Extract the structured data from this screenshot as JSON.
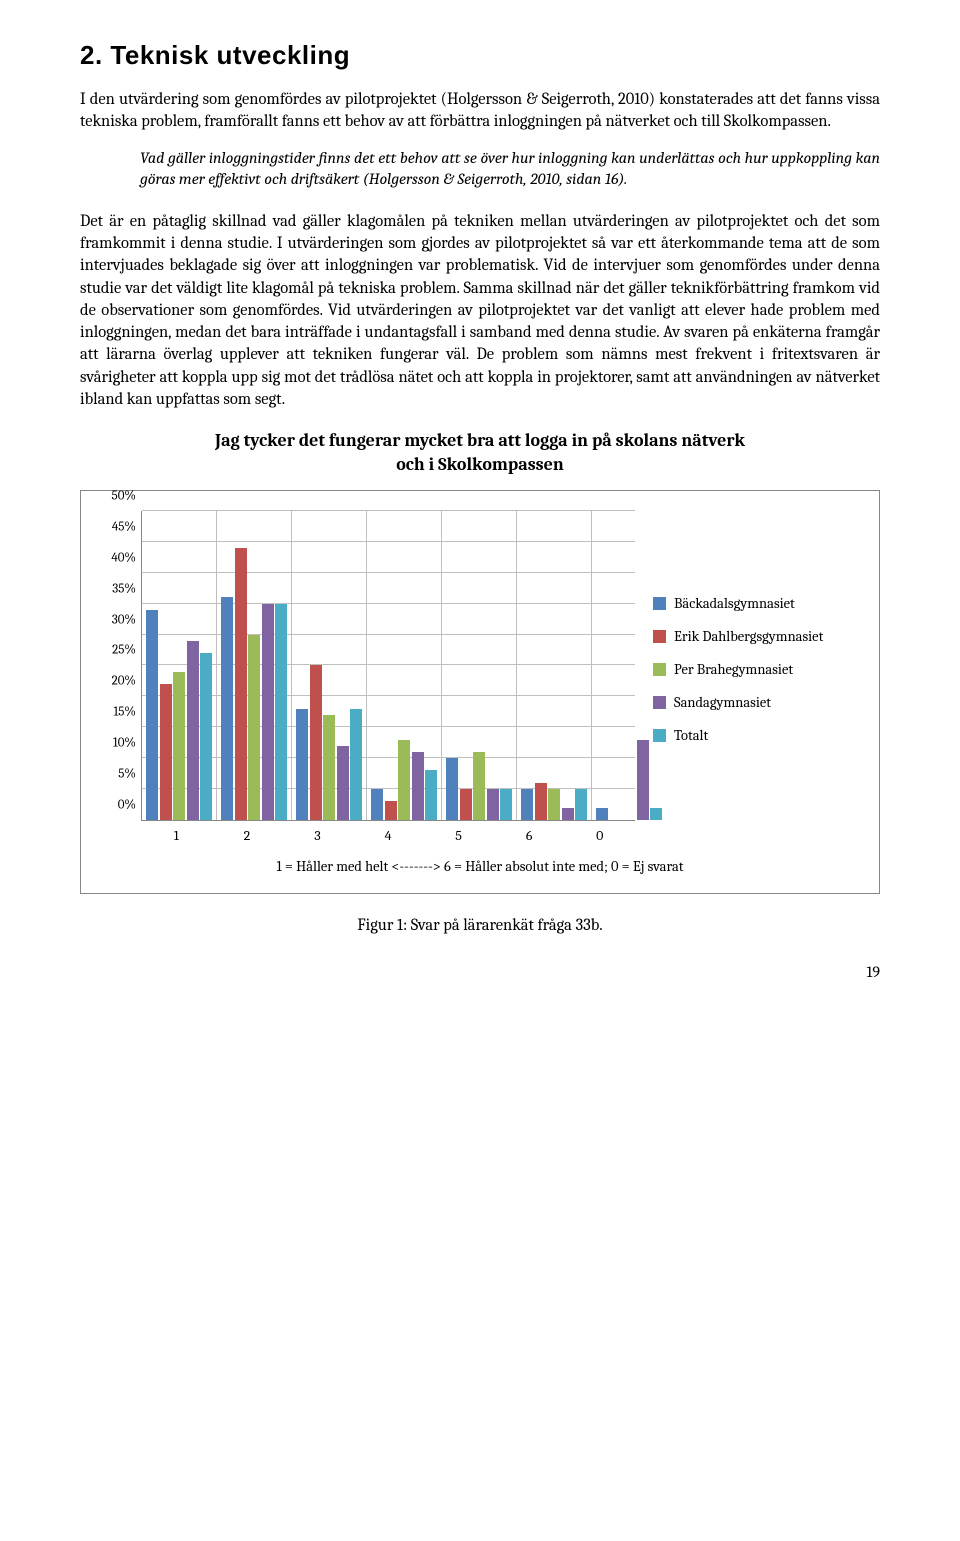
{
  "heading": "2. Teknisk utveckling",
  "para1": "I den utvärdering som genomfördes av pilotprojektet (Holgersson & Seigerroth, 2010) konstaterades att det fanns vissa tekniska problem, framförallt fanns ett behov av att förbättra inloggningen på nätverket och till Skolkompassen.",
  "quote": "Vad gäller inloggningstider finns det ett behov att se över hur inloggning kan underlättas och hur uppkoppling kan göras mer effektivt och driftsäkert (Holgersson & Seigerroth, 2010, sidan 16).",
  "para2": "Det är en påtaglig skillnad vad gäller klagomålen på tekniken mellan utvärderingen av pilotprojektet och det som framkommit i denna studie. I utvärderingen som gjordes av pilotprojektet så var ett återkommande tema att de som intervjuades beklagade sig över att inloggningen var problematisk. Vid de intervjuer som genomfördes under denna studie var det väldigt lite klagomål på tekniska problem. Samma skillnad när det gäller teknikförbättring framkom vid de observationer som genomfördes. Vid utvärderingen av pilotprojektet var det vanligt att elever hade problem med inloggningen, medan det bara inträffade i undantagsfall i samband med denna studie. Av svaren på enkäterna framgår att lärarna överlag upplever att tekniken fungerar väl. De problem som nämns mest frekvent i fritextsvaren är svårigheter att koppla upp sig mot det trådlösa nätet och att koppla in projektorer, samt att användningen av nätverket ibland kan uppfattas som segt.",
  "chart": {
    "title": "Jag tycker det fungerar mycket bra att logga in på skolans nätverk och i Skolkompassen",
    "ymax": 50,
    "yticks": [
      "0%",
      "5%",
      "10%",
      "15%",
      "20%",
      "25%",
      "30%",
      "35%",
      "40%",
      "45%",
      "50%"
    ],
    "categories": [
      "1",
      "2",
      "3",
      "4",
      "5",
      "6",
      "0"
    ],
    "axis_caption": "1 = Håller med helt <-------> 6 = Håller absolut inte med; 0 = Ej svarat",
    "series": [
      {
        "label": "Bäckadalsgymnasiet",
        "color": "#4f81bd",
        "values": [
          34,
          36,
          18,
          5,
          10,
          5,
          2
        ]
      },
      {
        "label": "Erik Dahlbergsgymnasiet",
        "color": "#c0504d",
        "values": [
          22,
          44,
          25,
          3,
          5,
          6,
          0
        ]
      },
      {
        "label": "Per Brahegymnasiet",
        "color": "#9bbb59",
        "values": [
          24,
          30,
          17,
          13,
          11,
          5,
          0
        ]
      },
      {
        "label": "Sandagymnasiet",
        "color": "#8064a2",
        "values": [
          29,
          35,
          12,
          11,
          5,
          2,
          13
        ]
      },
      {
        "label": "Totalt",
        "color": "#4bacc6",
        "values": [
          27,
          35,
          18,
          8,
          5,
          5,
          2
        ]
      }
    ]
  },
  "figure_caption": "Figur 1: Svar på lärarenkät fråga 33b.",
  "page_number": "19"
}
